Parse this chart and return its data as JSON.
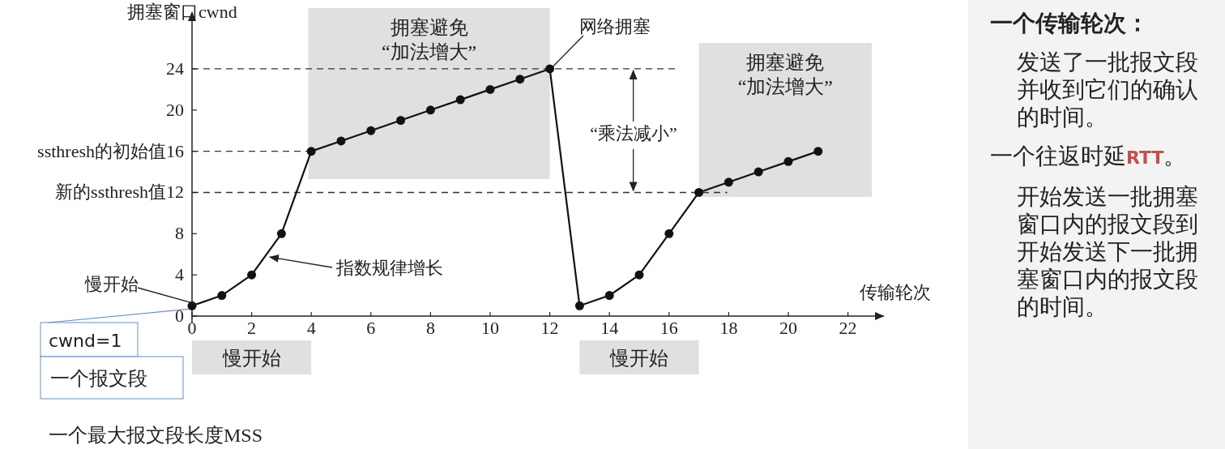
{
  "chart_data": {
    "type": "line",
    "ylabel": "拥塞窗口cwnd",
    "xlabel": "传输轮次",
    "x": [
      0,
      1,
      2,
      3,
      4,
      5,
      6,
      7,
      8,
      9,
      10,
      11,
      12,
      13,
      14,
      15,
      16,
      17,
      18,
      19,
      20,
      21
    ],
    "series": [
      {
        "color": "#111111",
        "values": [
          1,
          2,
          4,
          8,
          16,
          17,
          18,
          19,
          20,
          21,
          22,
          23,
          24,
          1,
          2,
          4,
          8,
          12,
          13,
          14,
          15,
          16
        ]
      }
    ],
    "marker": "circle",
    "line_style": "solid",
    "xlim": [
      0,
      23.2
    ],
    "ylim": [
      0,
      29.5
    ],
    "xticks": [
      0,
      2,
      4,
      6,
      8,
      10,
      12,
      14,
      16,
      18,
      20,
      22
    ],
    "yticks": [
      0,
      4,
      8,
      {
        "value": 12,
        "label": "新的ssthresh值12"
      },
      {
        "value": 16,
        "label": "ssthresh的初始值16"
      },
      20,
      24
    ],
    "grid": false,
    "ref_lines": [
      {
        "axis": "y",
        "value": 24,
        "line_style": "dashed",
        "color": "#333333"
      },
      {
        "axis": "y",
        "value": 16,
        "line_style": "dashed",
        "color": "#333333"
      },
      {
        "axis": "y",
        "value": 12,
        "line_style": "dashed",
        "color": "#333333"
      }
    ],
    "bands": [
      {
        "axis": "x",
        "from": 3.9,
        "to": 12,
        "label": "拥塞避免\n“加法增大”",
        "color": "#e0e0e0"
      },
      {
        "axis": "x",
        "from": 17,
        "to": 22.8,
        "label": "拥塞避免\n“加法增大”",
        "color": "#e0e0e0"
      }
    ],
    "annotations": [
      {
        "text": "慢开始",
        "x": 0,
        "y": 1
      },
      {
        "text": "指数规律增长",
        "x": 2.5,
        "y": 5.5
      },
      {
        "text": "网络拥塞",
        "x": 12,
        "y": 24
      },
      {
        "text": "“乘法减小”",
        "x": 14.8,
        "y": 24
      },
      "cwnd=1",
      "一个报文段",
      "慢开始",
      "慢开始",
      "一个最大报文段长度MSS",
      "一个传输轮次：",
      "发送了一批报文段并收到它们的确认的时间。",
      "一个往返时延RTT。",
      "开始发送一批拥塞窗口内的报文段到开始发送下一批拥塞窗口内的报文段的时间。"
    ]
  }
}
